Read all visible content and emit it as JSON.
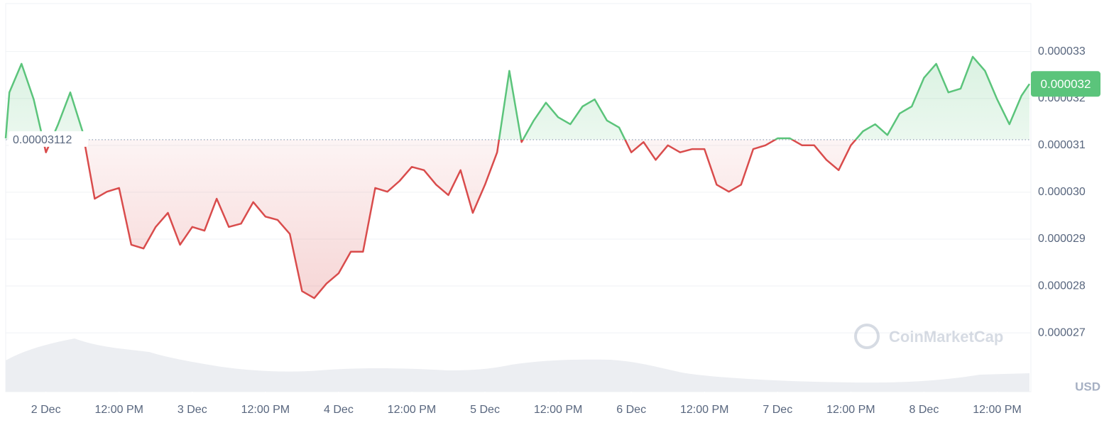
{
  "chart_data": {
    "type": "line",
    "x": [
      -6.6,
      -6,
      -4,
      -2,
      0,
      2,
      4,
      6,
      8,
      10,
      12,
      14,
      16,
      18,
      20,
      22,
      24,
      26,
      28,
      30,
      32,
      34,
      36,
      38,
      40,
      42,
      44,
      46,
      48,
      50,
      52,
      54,
      56,
      58,
      60,
      62,
      64,
      66,
      68,
      70,
      72,
      74,
      76,
      78,
      80,
      82,
      84,
      86,
      88,
      90,
      92,
      94,
      96,
      98,
      100,
      102,
      104,
      106,
      108,
      110,
      112,
      114,
      116,
      118,
      120,
      122,
      124,
      126,
      128,
      130,
      132,
      134,
      136,
      138,
      140,
      142,
      144,
      146,
      148,
      150,
      152,
      154,
      156,
      158,
      160,
      161.3
    ],
    "values": [
      3.115e-05,
      3.213e-05,
      3.274e-05,
      3.198e-05,
      3.085e-05,
      3.145e-05,
      3.213e-05,
      3.13e-05,
      2.986e-05,
      3.001e-05,
      3.009e-05,
      2.888e-05,
      2.88e-05,
      2.926e-05,
      2.956e-05,
      2.888e-05,
      2.926e-05,
      2.918e-05,
      2.986e-05,
      2.926e-05,
      2.933e-05,
      2.979e-05,
      2.948e-05,
      2.941e-05,
      2.911e-05,
      2.789e-05,
      2.774e-05,
      2.805e-05,
      2.827e-05,
      2.873e-05,
      2.873e-05,
      3.009e-05,
      3.001e-05,
      3.024e-05,
      3.054e-05,
      3.047e-05,
      3.016e-05,
      2.994e-05,
      3.047e-05,
      2.956e-05,
      3.016e-05,
      3.085e-05,
      3.259e-05,
      3.107e-05,
      3.153e-05,
      3.191e-05,
      3.16e-05,
      3.145e-05,
      3.183e-05,
      3.198e-05,
      3.153e-05,
      3.138e-05,
      3.085e-05,
      3.107e-05,
      3.069e-05,
      3.1e-05,
      3.085e-05,
      3.092e-05,
      3.092e-05,
      3.016e-05,
      3.001e-05,
      3.016e-05,
      3.092e-05,
      3.1e-05,
      3.115e-05,
      3.115e-05,
      3.1e-05,
      3.1e-05,
      3.069e-05,
      3.047e-05,
      3.1e-05,
      3.13e-05,
      3.145e-05,
      3.122e-05,
      3.168e-05,
      3.183e-05,
      3.244e-05,
      3.274e-05,
      3.213e-05,
      3.221e-05,
      3.289e-05,
      3.259e-05,
      3.198e-05,
      3.145e-05,
      3.206e-05,
      3.231e-05
    ],
    "baseline": 3.112e-05,
    "last_price_label": "0.000032",
    "up_color": "#5bc47b",
    "down_color": "#d94c4c",
    "xlim": [
      -6.6,
      161.3
    ],
    "xticks": [
      {
        "value": 0,
        "label": "2 Dec"
      },
      {
        "value": 12,
        "label": "12:00 PM"
      },
      {
        "value": 24,
        "label": "3 Dec"
      },
      {
        "value": 36,
        "label": "12:00 PM"
      },
      {
        "value": 48,
        "label": "4 Dec"
      },
      {
        "value": 60,
        "label": "12:00 PM"
      },
      {
        "value": 72,
        "label": "5 Dec"
      },
      {
        "value": 84,
        "label": "12:00 PM"
      },
      {
        "value": 96,
        "label": "6 Dec"
      },
      {
        "value": 108,
        "label": "12:00 PM"
      },
      {
        "value": 120,
        "label": "7 Dec"
      },
      {
        "value": 132,
        "label": "12:00 PM"
      },
      {
        "value": 144,
        "label": "8 Dec"
      },
      {
        "value": 156,
        "label": "12:00 PM"
      }
    ],
    "ylim": [
      2.57e-05,
      3.41e-05
    ],
    "yticks": [
      3.3e-05,
      3.2e-05,
      3.1e-05,
      {
        "value": 3e-05,
        "label": "0.000030"
      },
      2.9e-05,
      2.8e-05,
      2.7e-05
    ],
    "y_label": "USD",
    "watermark": "CoinMarketCap",
    "grid": true
  }
}
